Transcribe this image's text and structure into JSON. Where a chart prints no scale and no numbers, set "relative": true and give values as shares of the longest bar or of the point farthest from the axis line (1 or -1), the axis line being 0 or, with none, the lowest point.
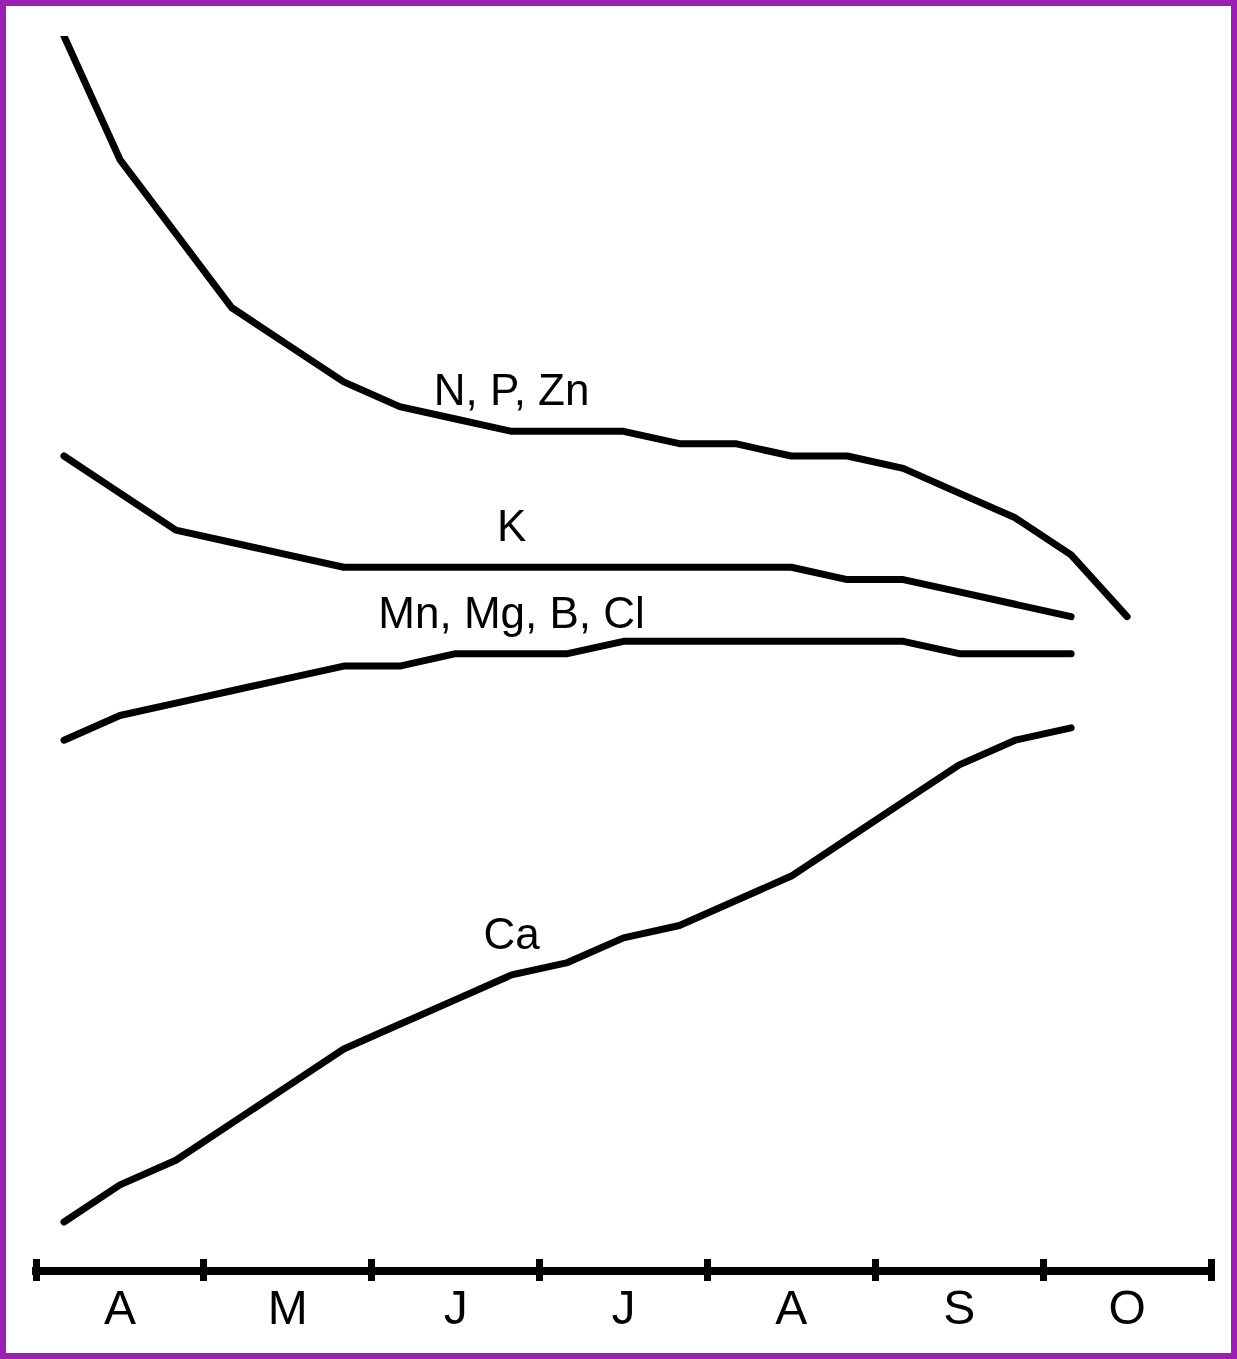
{
  "chart_data": {
    "type": "line",
    "relative": true,
    "marker": "none",
    "line_style": "solid",
    "categories": [
      null,
      "A",
      null,
      null,
      "M",
      null,
      null,
      "J",
      null,
      null,
      "J",
      null,
      null,
      "A",
      null,
      null,
      "S",
      null,
      null,
      "O",
      null
    ],
    "series": [
      {
        "name": "N, P, Zn",
        "color": "#000000",
        "values": [
          1.0,
          0.9,
          0.84,
          0.78,
          0.75,
          0.72,
          0.7,
          0.69,
          0.68,
          0.68,
          0.68,
          0.67,
          0.67,
          0.66,
          0.66,
          0.65,
          0.63,
          0.61,
          0.58,
          0.53,
          null
        ]
      },
      {
        "name": "K",
        "color": "#000000",
        "values": [
          0.66,
          0.63,
          0.6,
          0.59,
          0.58,
          0.57,
          0.57,
          0.57,
          0.57,
          0.57,
          0.57,
          0.57,
          0.57,
          0.57,
          0.56,
          0.56,
          0.55,
          0.54,
          0.53,
          null,
          null
        ]
      },
      {
        "name": "Mn, Mg, B, Cl",
        "color": "#000000",
        "values": [
          0.43,
          0.45,
          0.46,
          0.47,
          0.48,
          0.49,
          0.49,
          0.5,
          0.5,
          0.5,
          0.51,
          0.51,
          0.51,
          0.51,
          0.51,
          0.51,
          0.5,
          0.5,
          0.5,
          null,
          null
        ]
      },
      {
        "name": "Ca",
        "color": "#000000",
        "values": [
          0.04,
          0.07,
          0.09,
          0.12,
          0.15,
          0.18,
          0.2,
          0.22,
          0.24,
          0.25,
          0.27,
          0.28,
          0.3,
          0.32,
          0.35,
          0.38,
          0.41,
          0.43,
          0.44,
          null,
          null
        ]
      }
    ]
  }
}
